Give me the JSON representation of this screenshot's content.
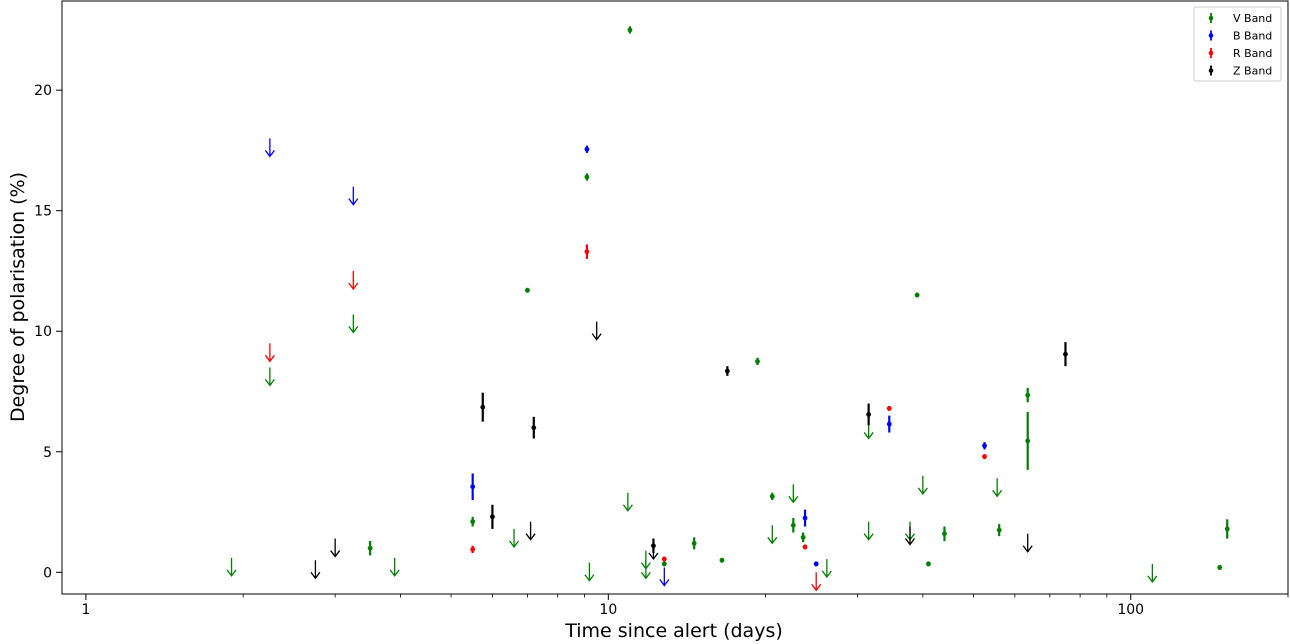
{
  "chart_data": {
    "type": "scatter",
    "xscale": "log",
    "xlabel": "Time since alert (days)",
    "ylabel": "Degree of polarisation (%)",
    "xlim": [
      0.9,
      200
    ],
    "ylim": [
      -0.9,
      23.7
    ],
    "xticks": [
      {
        "value": 1,
        "label": "1"
      },
      {
        "value": 10,
        "label": "10"
      },
      {
        "value": 100,
        "label": "100"
      }
    ],
    "yticks": [
      {
        "value": 0,
        "label": "0"
      },
      {
        "value": 5,
        "label": "5"
      },
      {
        "value": 10,
        "label": "10"
      },
      {
        "value": 15,
        "label": "15"
      },
      {
        "value": 20,
        "label": "20"
      }
    ],
    "legend_position": "top-right",
    "series": [
      {
        "name": "V Band",
        "color": "#008000",
        "points": [
          {
            "x": 5.5,
            "y": 2.1,
            "err": 0.2
          },
          {
            "x": 3.5,
            "y": 1.0,
            "err": 0.3
          },
          {
            "x": 7.0,
            "y": 11.7,
            "err": 0.1
          },
          {
            "x": 9.1,
            "y": 16.4,
            "err": 0.15
          },
          {
            "x": 11.0,
            "y": 22.5,
            "err": 0.15
          },
          {
            "x": 12.8,
            "y": 0.35,
            "err": 0.1
          },
          {
            "x": 14.6,
            "y": 1.2,
            "err": 0.25
          },
          {
            "x": 16.5,
            "y": 0.5,
            "err": 0.1
          },
          {
            "x": 19.3,
            "y": 8.75,
            "err": 0.15
          },
          {
            "x": 20.6,
            "y": 3.15,
            "err": 0.15
          },
          {
            "x": 22.6,
            "y": 1.95,
            "err": 0.3
          },
          {
            "x": 23.6,
            "y": 1.45,
            "err": 0.2
          },
          {
            "x": 39.0,
            "y": 11.5,
            "err": 0.1
          },
          {
            "x": 41.0,
            "y": 0.35,
            "err": 0.1
          },
          {
            "x": 44.0,
            "y": 1.6,
            "err": 0.3
          },
          {
            "x": 56.0,
            "y": 1.75,
            "err": 0.25
          },
          {
            "x": 63.5,
            "y": 7.35,
            "err": 0.3
          },
          {
            "x": 63.5,
            "y": 5.45,
            "err": 1.2
          },
          {
            "x": 148.0,
            "y": 0.2,
            "err": 0.1
          },
          {
            "x": 153.0,
            "y": 1.8,
            "err": 0.4
          }
        ],
        "upper_limits": [
          {
            "x": 1.9,
            "y": 0.6
          },
          {
            "x": 2.25,
            "y": 8.5
          },
          {
            "x": 3.25,
            "y": 10.7
          },
          {
            "x": 3.9,
            "y": 0.6
          },
          {
            "x": 6.6,
            "y": 1.8
          },
          {
            "x": 9.2,
            "y": 0.4
          },
          {
            "x": 10.9,
            "y": 3.3
          },
          {
            "x": 11.8,
            "y": 0.9
          },
          {
            "x": 11.8,
            "y": 0.5
          },
          {
            "x": 20.6,
            "y": 1.95
          },
          {
            "x": 22.6,
            "y": 3.65
          },
          {
            "x": 26.2,
            "y": 0.55
          },
          {
            "x": 31.5,
            "y": 2.1
          },
          {
            "x": 31.5,
            "y": 6.3
          },
          {
            "x": 37.8,
            "y": 2.1
          },
          {
            "x": 40.0,
            "y": 4.0
          },
          {
            "x": 55.5,
            "y": 3.9
          },
          {
            "x": 110.0,
            "y": 0.35
          }
        ]
      },
      {
        "name": "B Band",
        "color": "#0000ff",
        "points": [
          {
            "x": 5.5,
            "y": 3.55,
            "err": 0.55
          },
          {
            "x": 9.1,
            "y": 17.55,
            "err": 0.15
          },
          {
            "x": 23.8,
            "y": 2.25,
            "err": 0.35
          },
          {
            "x": 25.0,
            "y": 0.35,
            "err": 0.1
          },
          {
            "x": 34.5,
            "y": 6.15,
            "err": 0.35
          },
          {
            "x": 52.5,
            "y": 5.25,
            "err": 0.15
          }
        ],
        "upper_limits": [
          {
            "x": 2.25,
            "y": 18.0
          },
          {
            "x": 3.25,
            "y": 16.0
          },
          {
            "x": 12.8,
            "y": 0.2
          }
        ]
      },
      {
        "name": "R Band",
        "color": "#ff0000",
        "points": [
          {
            "x": 5.5,
            "y": 0.95,
            "err": 0.15
          },
          {
            "x": 9.1,
            "y": 13.3,
            "err": 0.3
          },
          {
            "x": 12.8,
            "y": 0.55,
            "err": 0.1
          },
          {
            "x": 23.8,
            "y": 1.05,
            "err": 0.1
          },
          {
            "x": 34.5,
            "y": 6.8,
            "err": 0.1
          },
          {
            "x": 52.5,
            "y": 4.8,
            "err": 0.1
          }
        ],
        "upper_limits": [
          {
            "x": 2.25,
            "y": 9.5
          },
          {
            "x": 3.25,
            "y": 12.5
          },
          {
            "x": 25.0,
            "y": 0.0
          }
        ]
      },
      {
        "name": "Z Band",
        "color": "#000000",
        "points": [
          {
            "x": 5.75,
            "y": 6.85,
            "err": 0.6
          },
          {
            "x": 6.0,
            "y": 2.3,
            "err": 0.5
          },
          {
            "x": 7.2,
            "y": 6.0,
            "err": 0.45
          },
          {
            "x": 12.2,
            "y": 1.1,
            "err": 0.3
          },
          {
            "x": 16.9,
            "y": 8.35,
            "err": 0.2
          },
          {
            "x": 31.5,
            "y": 6.55,
            "err": 0.45
          },
          {
            "x": 75.0,
            "y": 9.05,
            "err": 0.5
          }
        ],
        "upper_limits": [
          {
            "x": 2.75,
            "y": 0.5
          },
          {
            "x": 3.0,
            "y": 1.4
          },
          {
            "x": 7.1,
            "y": 2.1
          },
          {
            "x": 9.5,
            "y": 10.4
          },
          {
            "x": 12.2,
            "y": 1.3
          },
          {
            "x": 37.8,
            "y": 1.9
          },
          {
            "x": 63.5,
            "y": 1.6
          }
        ]
      }
    ]
  }
}
